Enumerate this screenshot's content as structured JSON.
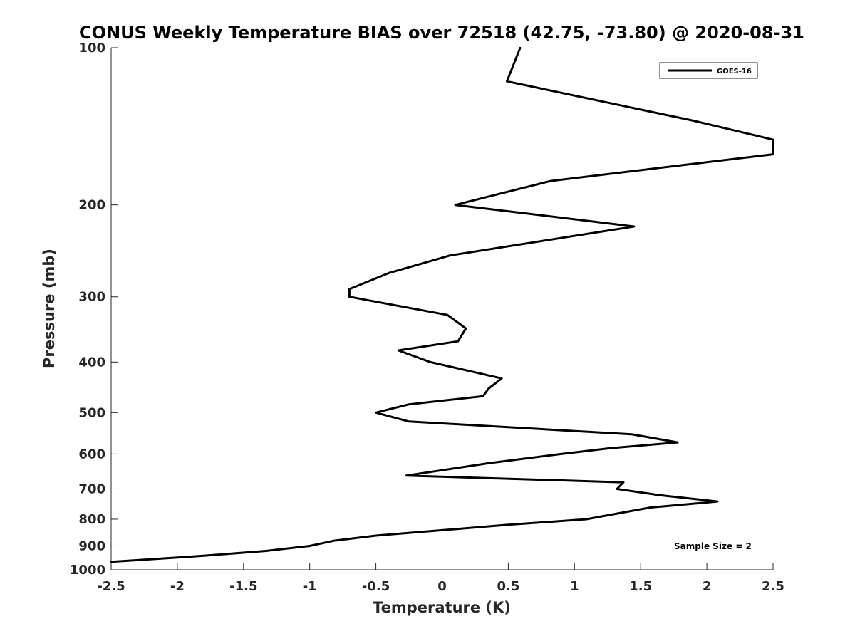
{
  "chart_data": {
    "type": "line",
    "title": "CONUS Weekly Temperature BIAS over 72518 (42.75, -73.80) @ 2020-08-31",
    "xlabel": "Temperature (K)",
    "ylabel": "Pressure (mb)",
    "xlim": [
      -2.5,
      2.5
    ],
    "ylim": [
      1000,
      100
    ],
    "yscale": "log",
    "yaxis_reversed": true,
    "grid": false,
    "legend_position": "top-right",
    "x_ticks": [
      "-2.5",
      "-2",
      "-1.5",
      "-1",
      "-0.5",
      "0",
      "0.5",
      "1",
      "1.5",
      "2",
      "2.5"
    ],
    "y_ticks": [
      "100",
      "200",
      "300",
      "400",
      "500",
      "600",
      "700",
      "800",
      "900",
      "1000"
    ],
    "series": [
      {
        "name": "GOES-16",
        "color": "#000000",
        "points": [
          {
            "x": 0.59,
            "p": 100
          },
          {
            "x": 0.49,
            "p": 116
          },
          {
            "x": 1.9,
            "p": 138
          },
          {
            "x": 2.5,
            "p": 150
          },
          {
            "x": 2.5,
            "p": 160
          },
          {
            "x": 0.82,
            "p": 180
          },
          {
            "x": 0.1,
            "p": 200
          },
          {
            "x": 1.45,
            "p": 220
          },
          {
            "x": 0.06,
            "p": 250
          },
          {
            "x": -0.4,
            "p": 270
          },
          {
            "x": -0.7,
            "p": 290
          },
          {
            "x": -0.7,
            "p": 300
          },
          {
            "x": 0.04,
            "p": 325
          },
          {
            "x": 0.18,
            "p": 345
          },
          {
            "x": 0.12,
            "p": 365
          },
          {
            "x": -0.33,
            "p": 380
          },
          {
            "x": -0.09,
            "p": 400
          },
          {
            "x": 0.45,
            "p": 430
          },
          {
            "x": 0.35,
            "p": 450
          },
          {
            "x": 0.31,
            "p": 465
          },
          {
            "x": -0.25,
            "p": 482
          },
          {
            "x": -0.5,
            "p": 500
          },
          {
            "x": -0.25,
            "p": 520
          },
          {
            "x": 1.43,
            "p": 550
          },
          {
            "x": 1.78,
            "p": 570
          },
          {
            "x": 1.27,
            "p": 585
          },
          {
            "x": 0.9,
            "p": 600
          },
          {
            "x": 0.35,
            "p": 625
          },
          {
            "x": -0.27,
            "p": 660
          },
          {
            "x": 1.37,
            "p": 680
          },
          {
            "x": 1.32,
            "p": 700
          },
          {
            "x": 1.65,
            "p": 720
          },
          {
            "x": 2.08,
            "p": 740
          },
          {
            "x": 1.57,
            "p": 760
          },
          {
            "x": 1.09,
            "p": 800
          },
          {
            "x": 0.5,
            "p": 820
          },
          {
            "x": -0.5,
            "p": 860
          },
          {
            "x": -0.82,
            "p": 880
          },
          {
            "x": -1.0,
            "p": 900
          },
          {
            "x": -1.33,
            "p": 920
          },
          {
            "x": -1.8,
            "p": 940
          },
          {
            "x": -2.35,
            "p": 960
          },
          {
            "x": -2.5,
            "p": 965
          }
        ]
      }
    ],
    "annotation": "Sample Size = 2"
  }
}
